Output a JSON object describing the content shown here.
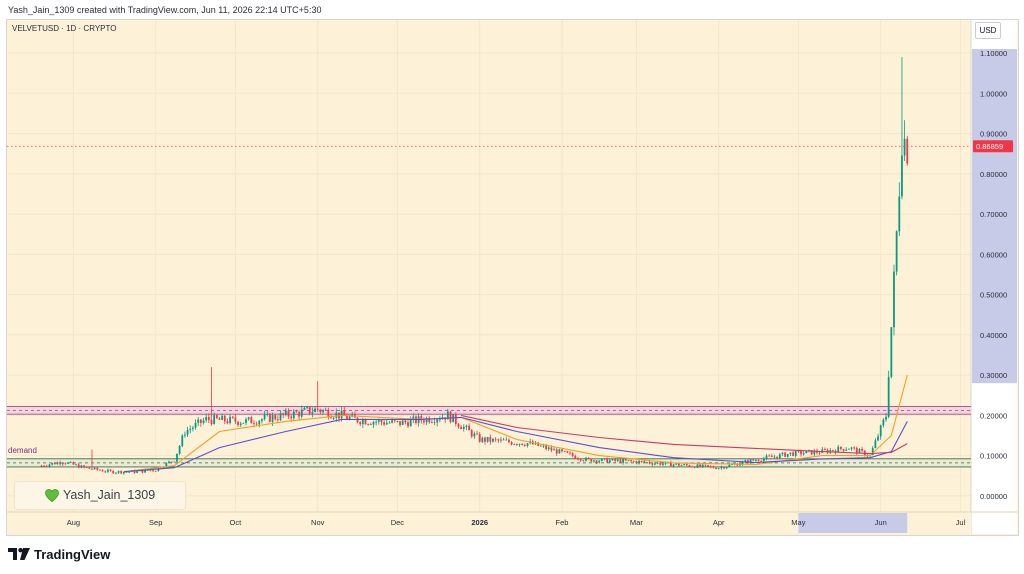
{
  "header": {
    "created_by": "Yash_Jain_1309 created with TradingView.com, Jun 11, 2026 22:14 UTC+5:30"
  },
  "symbol": {
    "title": "VELVETUSD · 1D · CRYPTO"
  },
  "currency_label": "USD",
  "watermark": {
    "name": "Yash_Jain_1309",
    "icon": "green-heart-icon"
  },
  "footer": {
    "brand": "TradingView",
    "icon": "tradingview-logo-icon"
  },
  "colors": {
    "background": "#fdf2d8",
    "up_candle": "#089981",
    "down_candle": "#f23645",
    "last_price": "#f23645",
    "ema_fast": "#f0a020",
    "ema_slow": "#5b4fd1",
    "ema_long": "#c43c6a",
    "zone_fill": "#f2cbe0",
    "zone_border": "#9c4a86",
    "selection": "#c7cbe8"
  },
  "chart_data": {
    "type": "candlestick",
    "title": "VELVETUSD · 1D · CRYPTO",
    "y_axis": {
      "unit": "USD",
      "range": [
        -0.04,
        1.12
      ],
      "ticks": [
        1.1,
        1.0,
        0.9,
        0.8,
        0.7,
        0.6,
        0.5,
        0.4,
        0.3,
        0.2,
        0.1,
        0.0
      ],
      "tick_labels": [
        "1.10000",
        "1.00000",
        "0.90000",
        "0.80000",
        "0.70000",
        "0.60000",
        "0.50000",
        "0.40000",
        "0.30000",
        "0.20000",
        "0.10000",
        "0.00000"
      ]
    },
    "x_axis": {
      "range": [
        "2025-07-07",
        "2026-07-05"
      ],
      "ticks": [
        {
          "label": "Aug",
          "date": "2025-08-01"
        },
        {
          "label": "Sep",
          "date": "2025-09-01"
        },
        {
          "label": "Oct",
          "date": "2025-10-01"
        },
        {
          "label": "Nov",
          "date": "2025-11-01"
        },
        {
          "label": "Dec",
          "date": "2025-12-01"
        },
        {
          "label": "2026",
          "date": "2026-01-01"
        },
        {
          "label": "Feb",
          "date": "2026-02-01"
        },
        {
          "label": "Mar",
          "date": "2026-03-01"
        },
        {
          "label": "Apr",
          "date": "2026-04-01"
        },
        {
          "label": "May",
          "date": "2026-05-01"
        },
        {
          "label": "Jun",
          "date": "2026-06-01"
        },
        {
          "label": "Jul",
          "date": "2026-07-01"
        }
      ],
      "highlighted_range": [
        "2026-05-01",
        "2026-06-11"
      ]
    },
    "last_price": 0.86859,
    "last_price_label": "0.86859",
    "price_highlight_range": [
      0.28,
      1.11
    ],
    "zones": [
      {
        "name": "",
        "from": 0.203,
        "to": 0.222
      },
      {
        "name": "demand",
        "from": 0.072,
        "to": 0.092
      }
    ],
    "close_path": [
      {
        "date": "2025-07-20",
        "close": 0.075
      },
      {
        "date": "2025-07-28",
        "close": 0.085
      },
      {
        "date": "2025-08-05",
        "close": 0.07
      },
      {
        "date": "2025-08-15",
        "close": 0.06
      },
      {
        "date": "2025-08-25",
        "close": 0.06
      },
      {
        "date": "2025-09-01",
        "close": 0.065
      },
      {
        "date": "2025-09-08",
        "close": 0.09
      },
      {
        "date": "2025-09-12",
        "close": 0.16
      },
      {
        "date": "2025-09-20",
        "close": 0.19
      },
      {
        "date": "2025-10-05",
        "close": 0.185
      },
      {
        "date": "2025-10-20",
        "close": 0.2
      },
      {
        "date": "2025-11-01",
        "close": 0.215
      },
      {
        "date": "2025-11-15",
        "close": 0.19
      },
      {
        "date": "2025-12-01",
        "close": 0.18
      },
      {
        "date": "2025-12-20",
        "close": 0.2
      },
      {
        "date": "2026-01-01",
        "close": 0.14
      },
      {
        "date": "2026-01-20",
        "close": 0.13
      },
      {
        "date": "2026-02-10",
        "close": 0.09
      },
      {
        "date": "2026-03-01",
        "close": 0.085
      },
      {
        "date": "2026-04-01",
        "close": 0.07
      },
      {
        "date": "2026-04-15",
        "close": 0.09
      },
      {
        "date": "2026-04-28",
        "close": 0.105
      },
      {
        "date": "2026-05-10",
        "close": 0.11
      },
      {
        "date": "2026-05-20",
        "close": 0.12
      },
      {
        "date": "2026-05-28",
        "close": 0.1
      },
      {
        "date": "2026-06-03",
        "close": 0.2
      },
      {
        "date": "2026-06-05",
        "close": 0.42
      },
      {
        "date": "2026-06-07",
        "close": 0.65
      },
      {
        "date": "2026-06-09",
        "close": 0.9
      },
      {
        "date": "2026-06-11",
        "close": 0.86859
      }
    ],
    "spikes": [
      {
        "date": "2025-08-08",
        "high": 0.115
      },
      {
        "date": "2025-09-22",
        "high": 0.32
      },
      {
        "date": "2025-11-01",
        "high": 0.285
      },
      {
        "date": "2026-06-09",
        "high": 1.09
      }
    ],
    "series": [
      {
        "name": "",
        "color": "#f0a020",
        "values": [
          {
            "date": "2025-08-20",
            "value": 0.06
          },
          {
            "date": "2025-09-08",
            "value": 0.075
          },
          {
            "date": "2025-09-25",
            "value": 0.16
          },
          {
            "date": "2025-10-20",
            "value": 0.185
          },
          {
            "date": "2025-11-10",
            "value": 0.2
          },
          {
            "date": "2025-12-10",
            "value": 0.19
          },
          {
            "date": "2025-12-25",
            "value": 0.195
          },
          {
            "date": "2026-01-15",
            "value": 0.14
          },
          {
            "date": "2026-02-15",
            "value": 0.1
          },
          {
            "date": "2026-03-15",
            "value": 0.082
          },
          {
            "date": "2026-04-15",
            "value": 0.078
          },
          {
            "date": "2026-05-10",
            "value": 0.1
          },
          {
            "date": "2026-05-28",
            "value": 0.1
          },
          {
            "date": "2026-06-05",
            "value": 0.15
          },
          {
            "date": "2026-06-11",
            "value": 0.3
          }
        ]
      },
      {
        "name": "",
        "color": "#5b4fd1",
        "values": [
          {
            "date": "2025-08-20",
            "value": 0.06
          },
          {
            "date": "2025-09-08",
            "value": 0.07
          },
          {
            "date": "2025-09-25",
            "value": 0.12
          },
          {
            "date": "2025-10-20",
            "value": 0.16
          },
          {
            "date": "2025-11-10",
            "value": 0.19
          },
          {
            "date": "2025-12-10",
            "value": 0.19
          },
          {
            "date": "2025-12-25",
            "value": 0.195
          },
          {
            "date": "2026-01-15",
            "value": 0.16
          },
          {
            "date": "2026-02-15",
            "value": 0.12
          },
          {
            "date": "2026-03-15",
            "value": 0.095
          },
          {
            "date": "2026-04-15",
            "value": 0.083
          },
          {
            "date": "2026-05-10",
            "value": 0.092
          },
          {
            "date": "2026-05-28",
            "value": 0.095
          },
          {
            "date": "2026-06-05",
            "value": 0.11
          },
          {
            "date": "2026-06-11",
            "value": 0.185
          }
        ]
      },
      {
        "name": "",
        "color": "#c43c6a",
        "values": [
          {
            "date": "2025-12-25",
            "value": 0.2
          },
          {
            "date": "2026-01-15",
            "value": 0.17
          },
          {
            "date": "2026-02-15",
            "value": 0.145
          },
          {
            "date": "2026-03-15",
            "value": 0.128
          },
          {
            "date": "2026-04-15",
            "value": 0.118
          },
          {
            "date": "2026-05-10",
            "value": 0.11
          },
          {
            "date": "2026-05-28",
            "value": 0.105
          },
          {
            "date": "2026-06-05",
            "value": 0.108
          },
          {
            "date": "2026-06-11",
            "value": 0.13
          }
        ]
      }
    ],
    "grid": true
  }
}
